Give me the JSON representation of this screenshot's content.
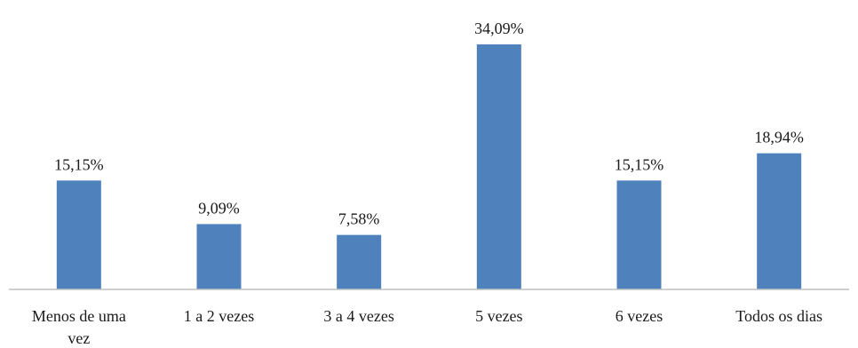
{
  "chart_data": {
    "type": "bar",
    "categories": [
      [
        "Menos de uma",
        "vez"
      ],
      [
        "1 a 2 vezes"
      ],
      [
        "3 a 4  vezes"
      ],
      [
        "5  vezes"
      ],
      [
        "6  vezes"
      ],
      [
        "Todos os dias"
      ]
    ],
    "values": [
      15.15,
      9.09,
      7.58,
      34.09,
      15.15,
      18.94
    ],
    "data_labels": [
      "15,15%",
      "9,09%",
      "7,58%",
      "34,09%",
      "15,15%",
      "18,94%"
    ],
    "title": "",
    "xlabel": "",
    "ylabel": "",
    "ylim": [
      0,
      34.09
    ],
    "grid": false,
    "bar_color": "#4f81bd"
  }
}
